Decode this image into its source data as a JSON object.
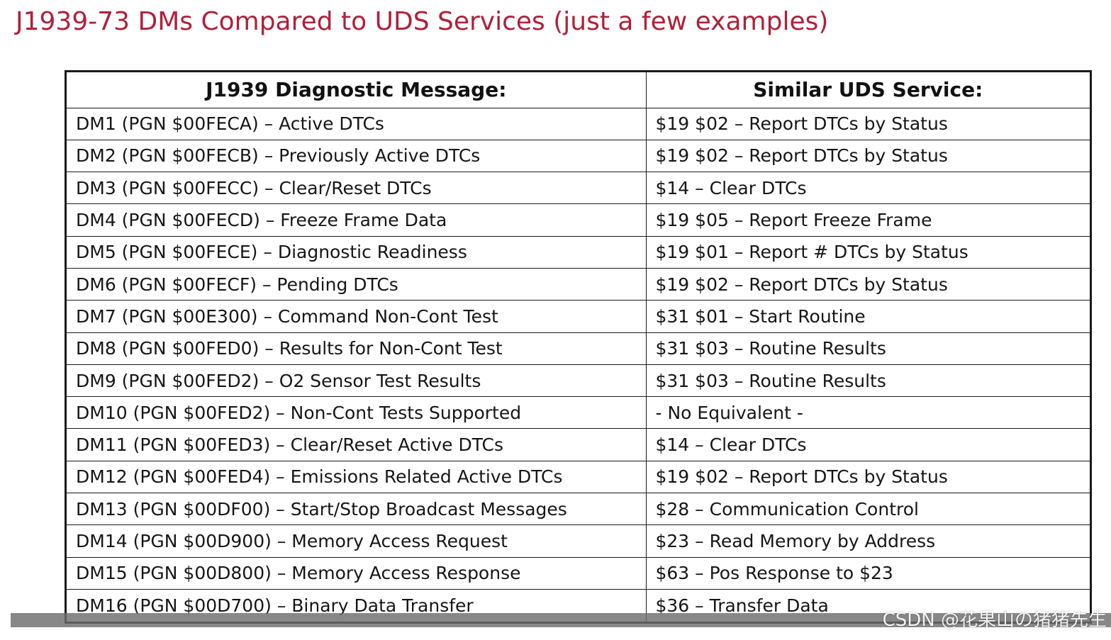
{
  "title": "J1939-73 DMs Compared to UDS Services (just a few examples)",
  "table": {
    "headers": [
      "J1939 Diagnostic Message:",
      "Similar UDS Service:"
    ],
    "rows": [
      [
        "DM1 (PGN $00FECA) – Active DTCs",
        "$19 $02 – Report DTCs by Status"
      ],
      [
        "DM2 (PGN $00FECB) – Previously Active DTCs",
        "$19 $02 – Report DTCs by Status"
      ],
      [
        "DM3 (PGN $00FECC) – Clear/Reset DTCs",
        "$14 – Clear DTCs"
      ],
      [
        "DM4 (PGN $00FECD) – Freeze Frame Data",
        "$19 $05 – Report Freeze Frame"
      ],
      [
        "DM5 (PGN $00FECE) – Diagnostic Readiness",
        "$19 $01 – Report # DTCs by Status"
      ],
      [
        "DM6 (PGN $00FECF) – Pending DTCs",
        "$19 $02 – Report DTCs by Status"
      ],
      [
        "DM7 (PGN $00E300) – Command Non-Cont Test",
        "$31 $01 – Start Routine"
      ],
      [
        "DM8 (PGN $00FED0) – Results for Non-Cont Test",
        "$31 $03 – Routine Results"
      ],
      [
        "DM9 (PGN $00FED2) – O2 Sensor Test Results",
        "$31 $03 – Routine Results"
      ],
      [
        "DM10 (PGN $00FED2) – Non-Cont Tests Supported",
        " - No Equivalent -"
      ],
      [
        "DM11 (PGN $00FED3) – Clear/Reset Active DTCs",
        "$14 – Clear DTCs"
      ],
      [
        "DM12 (PGN $00FED4) – Emissions Related Active DTCs",
        "$19 $02 – Report DTCs by Status"
      ],
      [
        "DM13 (PGN $00DF00) – Start/Stop Broadcast Messages",
        "$28 – Communication Control"
      ],
      [
        "DM14 (PGN $00D900) – Memory Access Request",
        "$23 – Read Memory by Address"
      ],
      [
        "DM15 (PGN $00D800) – Memory Access Response",
        "$63 – Pos Response to $23"
      ],
      [
        "DM16 (PGN $00D700) – Binary Data Transfer",
        "$36 – Transfer Data"
      ]
    ]
  },
  "watermark": "CSDN @花果山の猪猪先生",
  "colors": {
    "title": "#b0203a",
    "grid": "#1a1a1a",
    "text": "#161616"
  }
}
